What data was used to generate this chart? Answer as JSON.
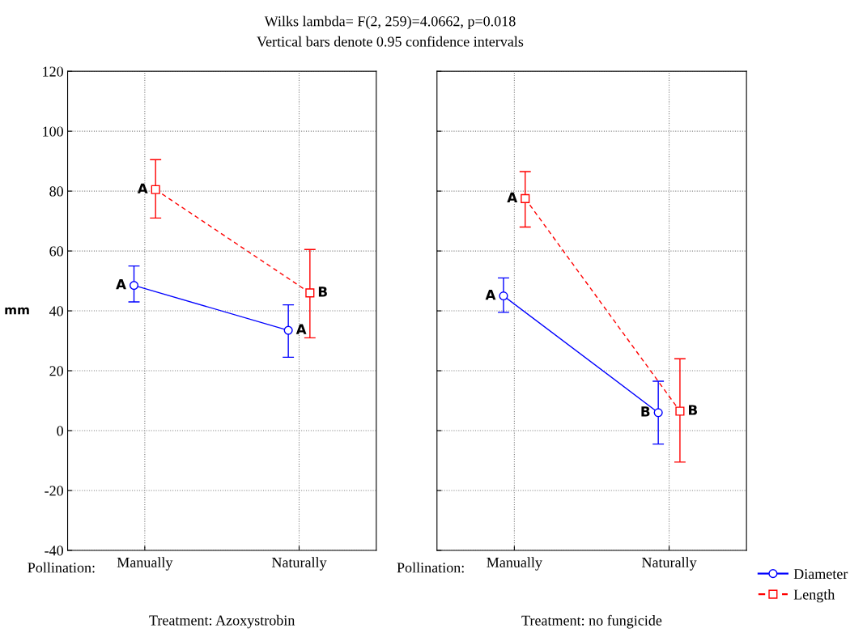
{
  "chart_data": [
    {
      "type": "line",
      "title": "Wilks lambda= F(2, 259)=4.0662, p=0.018",
      "subtitle": "Vertical bars denote 0.95 confidence intervals",
      "xlabel": "Pollination:",
      "ylabel": "mm",
      "categories": [
        "Manually",
        "Naturally"
      ],
      "ylim": [
        -40,
        120
      ],
      "yticks": [
        -40,
        -20,
        0,
        20,
        40,
        60,
        80,
        100,
        120
      ],
      "grid": true,
      "legend": "bottom right",
      "series": [
        {
          "name": "Diameter",
          "color": "#0000ff",
          "values": [
            48.5,
            33.5
          ],
          "errors": [
            [
              43,
              55
            ],
            [
              24.5,
              42
            ]
          ],
          "value_labels": [
            "A",
            "A"
          ],
          "marker": "circle",
          "line_style": "solid"
        },
        {
          "name": "Length",
          "color": "#ff0000",
          "values": [
            80.5,
            46
          ],
          "errors": [
            [
              71,
              90.5
            ],
            [
              31,
              60.5
            ]
          ],
          "value_labels": [
            "A",
            "B"
          ],
          "marker": "square",
          "line_style": "dashed"
        }
      ],
      "annotations": [
        "Treatment: Azoxystrobin"
      ]
    },
    {
      "type": "line",
      "xlabel": "Pollination:",
      "categories": [
        "Manually",
        "Naturally"
      ],
      "ylim": [
        -40,
        120
      ],
      "yticks": [
        -40,
        -20,
        0,
        20,
        40,
        60,
        80,
        100,
        120
      ],
      "grid": true,
      "tick_labels": "x",
      "series": [
        {
          "color": "#0000ff",
          "values": [
            45,
            6
          ],
          "errors": [
            [
              39.5,
              51
            ],
            [
              -4.5,
              16.5
            ]
          ],
          "value_labels": [
            "A",
            "B"
          ],
          "marker": "circle",
          "line_style": "solid"
        },
        {
          "color": "#ff0000",
          "values": [
            77.5,
            6.5
          ],
          "errors": [
            [
              68,
              86.5
            ],
            [
              -10.5,
              24
            ]
          ],
          "value_labels": [
            "A",
            "B"
          ],
          "marker": "square",
          "line_style": "dashed"
        }
      ],
      "annotations": [
        "Treatment: no fungicide"
      ]
    }
  ]
}
